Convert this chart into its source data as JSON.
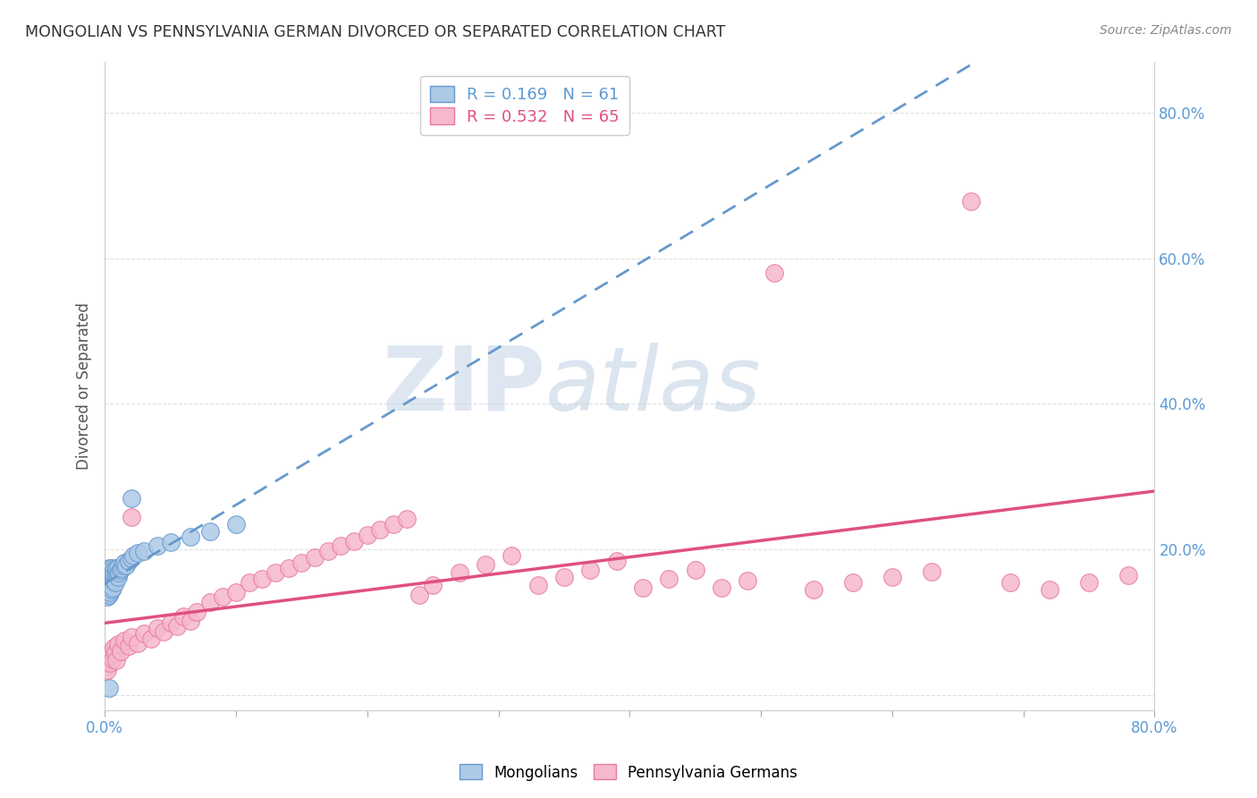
{
  "title": "MONGOLIAN VS PENNSYLVANIA GERMAN DIVORCED OR SEPARATED CORRELATION CHART",
  "source": "Source: ZipAtlas.com",
  "ylabel": "Divorced or Separated",
  "ytick_vals": [
    0.0,
    0.2,
    0.4,
    0.6,
    0.8
  ],
  "ytick_labels": [
    "",
    "20.0%",
    "40.0%",
    "60.0%",
    "80.0%"
  ],
  "xlim": [
    0.0,
    0.8
  ],
  "ylim": [
    -0.02,
    0.87
  ],
  "legend_line1": "R = 0.169   N = 61",
  "legend_line2": "R = 0.532   N = 65",
  "mongolian_color": "#adc9e8",
  "mongolian_edge": "#6699cc",
  "pa_german_color": "#f5b8cd",
  "pa_german_edge": "#e87aa0",
  "trend_mongolian_color": "#6699cc",
  "trend_pa_german_color": "#e05080",
  "background_color": "#ffffff",
  "grid_color": "#dddddd",
  "title_color": "#333333",
  "axis_label_color": "#5b9bd5",
  "watermark_color": "#d5e3f0",
  "mongolians_x": [
    0.001,
    0.001,
    0.001,
    0.001,
    0.001,
    0.001,
    0.001,
    0.002,
    0.002,
    0.002,
    0.002,
    0.002,
    0.002,
    0.002,
    0.002,
    0.003,
    0.003,
    0.003,
    0.003,
    0.003,
    0.003,
    0.003,
    0.004,
    0.004,
    0.004,
    0.004,
    0.004,
    0.005,
    0.005,
    0.005,
    0.005,
    0.006,
    0.006,
    0.006,
    0.007,
    0.007,
    0.007,
    0.008,
    0.008,
    0.009,
    0.009,
    0.01,
    0.01,
    0.011,
    0.012,
    0.013,
    0.014,
    0.015,
    0.016,
    0.018,
    0.02,
    0.022,
    0.025,
    0.03,
    0.04,
    0.05,
    0.065,
    0.08,
    0.1,
    0.02,
    0.003
  ],
  "mongolians_y": [
    0.145,
    0.152,
    0.148,
    0.16,
    0.138,
    0.155,
    0.142,
    0.158,
    0.148,
    0.165,
    0.14,
    0.172,
    0.135,
    0.168,
    0.153,
    0.162,
    0.145,
    0.17,
    0.138,
    0.175,
    0.148,
    0.158,
    0.168,
    0.142,
    0.172,
    0.152,
    0.165,
    0.158,
    0.145,
    0.175,
    0.162,
    0.155,
    0.168,
    0.148,
    0.172,
    0.158,
    0.165,
    0.162,
    0.155,
    0.168,
    0.175,
    0.162,
    0.175,
    0.168,
    0.172,
    0.175,
    0.178,
    0.182,
    0.178,
    0.185,
    0.188,
    0.192,
    0.195,
    0.198,
    0.205,
    0.21,
    0.218,
    0.225,
    0.235,
    0.27,
    0.01
  ],
  "pa_german_x": [
    0.001,
    0.002,
    0.003,
    0.004,
    0.005,
    0.006,
    0.007,
    0.008,
    0.009,
    0.01,
    0.012,
    0.015,
    0.018,
    0.02,
    0.025,
    0.03,
    0.035,
    0.04,
    0.045,
    0.05,
    0.055,
    0.06,
    0.065,
    0.07,
    0.08,
    0.09,
    0.1,
    0.11,
    0.12,
    0.13,
    0.14,
    0.15,
    0.16,
    0.17,
    0.18,
    0.19,
    0.2,
    0.21,
    0.22,
    0.23,
    0.24,
    0.25,
    0.27,
    0.29,
    0.31,
    0.33,
    0.35,
    0.37,
    0.39,
    0.41,
    0.43,
    0.45,
    0.47,
    0.49,
    0.51,
    0.54,
    0.57,
    0.6,
    0.63,
    0.66,
    0.69,
    0.72,
    0.75,
    0.78,
    0.02
  ],
  "pa_german_y": [
    0.04,
    0.035,
    0.055,
    0.045,
    0.06,
    0.05,
    0.065,
    0.058,
    0.048,
    0.07,
    0.06,
    0.075,
    0.068,
    0.08,
    0.072,
    0.085,
    0.078,
    0.092,
    0.088,
    0.1,
    0.095,
    0.108,
    0.102,
    0.115,
    0.128,
    0.135,
    0.142,
    0.155,
    0.16,
    0.168,
    0.175,
    0.182,
    0.19,
    0.198,
    0.205,
    0.212,
    0.22,
    0.228,
    0.235,
    0.242,
    0.138,
    0.152,
    0.168,
    0.18,
    0.192,
    0.152,
    0.162,
    0.172,
    0.185,
    0.148,
    0.16,
    0.172,
    0.148,
    0.158,
    0.58,
    0.145,
    0.155,
    0.162,
    0.17,
    0.678,
    0.155,
    0.145,
    0.155,
    0.165,
    0.245
  ]
}
